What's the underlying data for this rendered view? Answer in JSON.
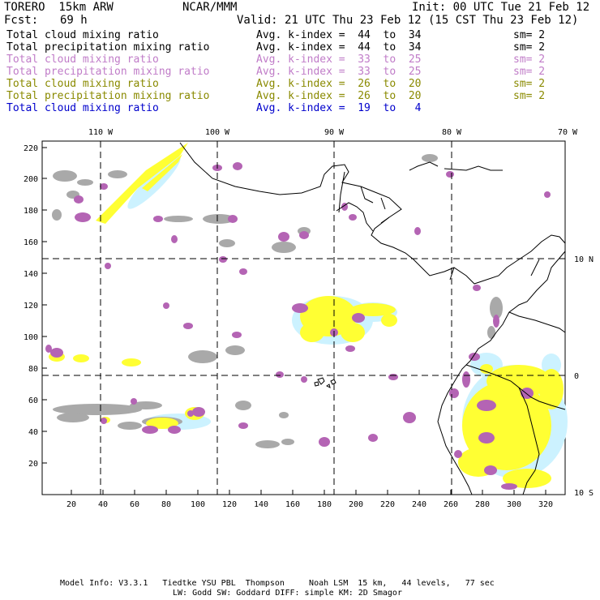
{
  "header": {
    "model": "TORERO  15km ARW",
    "org": "NCAR/MMM",
    "init": "Init: 00 UTC Tue 21 Feb 12",
    "fcst_label": "Fcst:",
    "fcst_value": "69 h",
    "valid": "Valid: 21 UTC Thu 23 Feb 12 (15 CST Thu 23 Feb 12)"
  },
  "legend": [
    {
      "field": "Total cloud mixing ratio",
      "kindex": "Avg. k-index =  44  to  34",
      "sm": "sm= 2",
      "color": "#000000"
    },
    {
      "field": "Total precipitation mixing ratio",
      "kindex": "Avg. k-index =  44  to  34",
      "sm": "sm= 2",
      "color": "#000000"
    },
    {
      "field": "Total cloud mixing ratio",
      "kindex": "Avg. k-index =  33  to  25",
      "sm": "sm= 2",
      "color": "#c07cc8"
    },
    {
      "field": "Total precipitation mixing ratio",
      "kindex": "Avg. k-index =  33  to  25",
      "sm": "sm= 2",
      "color": "#c07cc8"
    },
    {
      "field": "Total cloud mixing ratio",
      "kindex": "Avg. k-index =  26  to  20",
      "sm": "sm= 2",
      "color": "#8a8a00"
    },
    {
      "field": "Total precipitation mixing ratio",
      "kindex": "Avg. k-index =  26  to  20",
      "sm": "sm= 2",
      "color": "#8a8a00"
    },
    {
      "field": "Total cloud mixing ratio",
      "kindex": "Avg. k-index =  19  to   4",
      "sm": "",
      "color": "#0000cc"
    }
  ],
  "axes": {
    "lon_labels": [
      "110 W",
      "100 W",
      "90 W",
      "80 W",
      "70 W"
    ],
    "lat_labels": [
      "10 N",
      "0",
      "10 S"
    ],
    "y_ticks": [
      "220",
      "200",
      "180",
      "160",
      "140",
      "120",
      "100",
      "80",
      "60",
      "40",
      "20"
    ],
    "x_ticks": [
      "20",
      "40",
      "60",
      "80",
      "100",
      "120",
      "140",
      "160",
      "180",
      "200",
      "220",
      "240",
      "260",
      "280",
      "300",
      "320"
    ]
  },
  "footer": {
    "line1": "Model Info: V3.3.1   Tiedtke YSU PBL  Thompson     Noah LSM  15 km,   44 levels,   77 sec",
    "line2": "LW: Godd SW: Goddard DIFF: simple KM: 2D Smagor"
  },
  "colors": {
    "gray": "#a9a9a9",
    "purple": "#b464b4",
    "yellow": "#ffff33",
    "cyan": "#ccf2ff"
  }
}
